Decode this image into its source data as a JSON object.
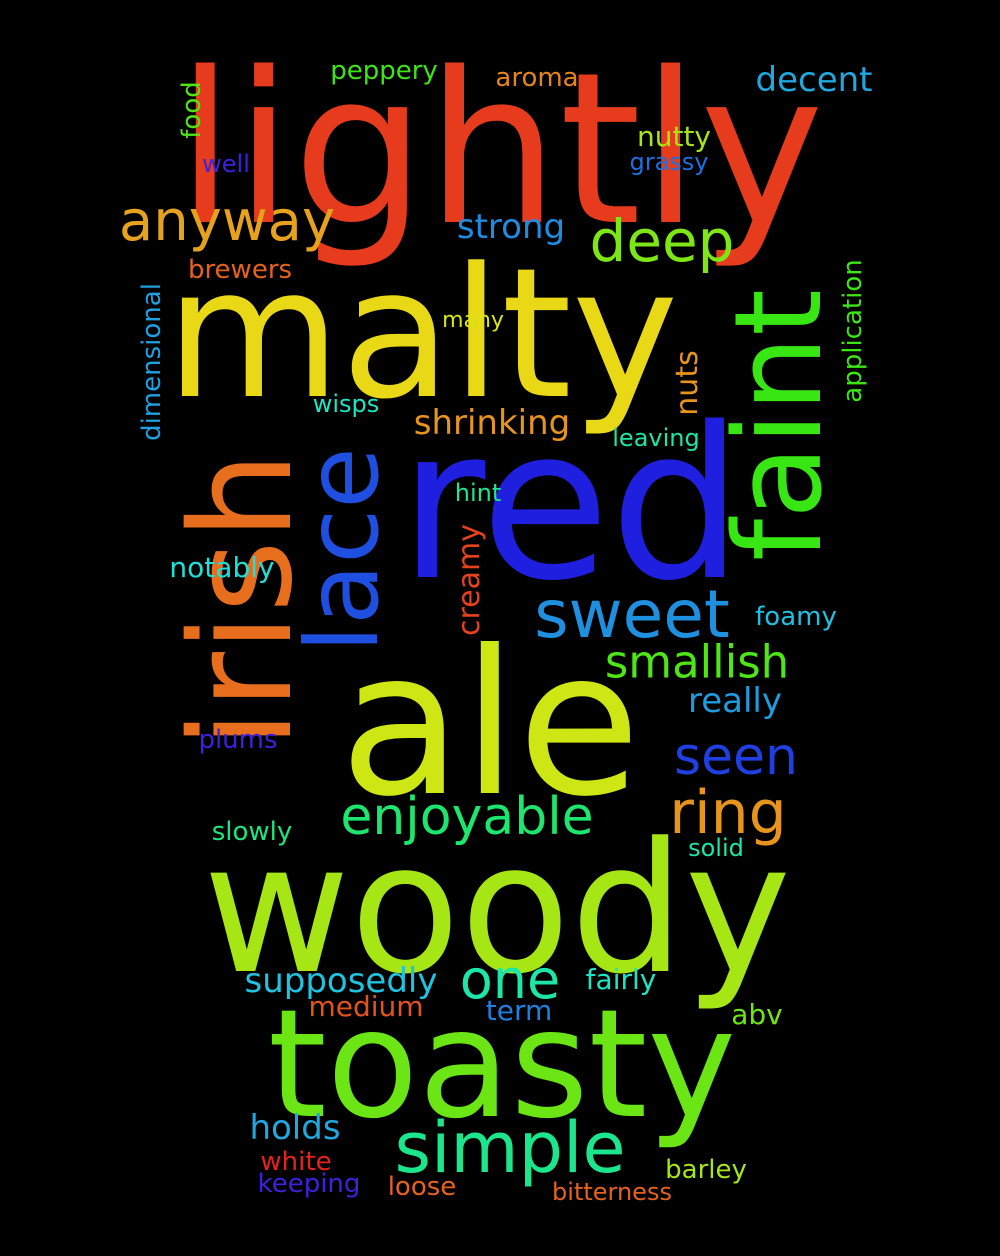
{
  "words": [
    {
      "id": "lightly",
      "text": "lightly",
      "color": "#e63b1c",
      "vertical": false
    },
    {
      "id": "malty",
      "text": "malty",
      "color": "#e8d816",
      "vertical": false
    },
    {
      "id": "red",
      "text": "red",
      "color": "#1f1fe0",
      "vertical": false
    },
    {
      "id": "ale",
      "text": "ale",
      "color": "#cde614",
      "vertical": false
    },
    {
      "id": "woody",
      "text": "woody",
      "color": "#a6e614",
      "vertical": false
    },
    {
      "id": "toasty",
      "text": "toasty",
      "color": "#6be614",
      "vertical": false
    },
    {
      "id": "irish",
      "text": "irish",
      "color": "#e66e1c",
      "vertical": true
    },
    {
      "id": "faint",
      "text": "faint",
      "color": "#38e614",
      "vertical": true
    },
    {
      "id": "lace",
      "text": "lace",
      "color": "#1f4fe0",
      "vertical": true
    },
    {
      "id": "anyway",
      "text": "anyway",
      "color": "#e6a21c",
      "vertical": false
    },
    {
      "id": "deep",
      "text": "deep",
      "color": "#7ee614",
      "vertical": false
    },
    {
      "id": "sweet",
      "text": "sweet",
      "color": "#1f8fe0",
      "vertical": false
    },
    {
      "id": "simple",
      "text": "simple",
      "color": "#1ce68c",
      "vertical": false
    },
    {
      "id": "enjoyable",
      "text": "enjoyable",
      "color": "#1ce66e",
      "vertical": false
    },
    {
      "id": "smallish",
      "text": "smallish",
      "color": "#4ee614",
      "vertical": false
    },
    {
      "id": "seen",
      "text": "seen",
      "color": "#1f3fe0",
      "vertical": false
    },
    {
      "id": "ring",
      "text": "ring",
      "color": "#e6941c",
      "vertical": false
    },
    {
      "id": "one",
      "text": "one",
      "color": "#1ce6a8",
      "vertical": false
    },
    {
      "id": "strong",
      "text": "strong",
      "color": "#1f8ce0",
      "vertical": false
    },
    {
      "id": "shrinking",
      "text": "shrinking",
      "color": "#e6941c",
      "vertical": false
    },
    {
      "id": "supposedly",
      "text": "supposedly",
      "color": "#1fc4e0",
      "vertical": false
    },
    {
      "id": "decent",
      "text": "decent",
      "color": "#1fa8e0",
      "vertical": false
    },
    {
      "id": "nutty",
      "text": "nutty",
      "color": "#a6e614",
      "vertical": false
    },
    {
      "id": "grassy",
      "text": "grassy",
      "color": "#1f6fe0",
      "vertical": false
    },
    {
      "id": "peppery",
      "text": "peppery",
      "color": "#3ce614",
      "vertical": false
    },
    {
      "id": "aroma",
      "text": "aroma",
      "color": "#e6841c",
      "vertical": false
    },
    {
      "id": "food",
      "text": "food",
      "color": "#4ee614",
      "vertical": true
    },
    {
      "id": "well",
      "text": "well",
      "color": "#3f1fe0",
      "vertical": false
    },
    {
      "id": "brewers",
      "text": "brewers",
      "color": "#e6621c",
      "vertical": false
    },
    {
      "id": "many",
      "text": "many",
      "color": "#d8e614",
      "vertical": false
    },
    {
      "id": "dimensional",
      "text": "dimensional",
      "color": "#1fa0e0",
      "vertical": true
    },
    {
      "id": "application",
      "text": "application",
      "color": "#3ce614",
      "vertical": true
    },
    {
      "id": "nuts",
      "text": "nuts",
      "color": "#e6941c",
      "vertical": true
    },
    {
      "id": "wisps",
      "text": "wisps",
      "color": "#1ce6c4",
      "vertical": false
    },
    {
      "id": "leaving",
      "text": "leaving",
      "color": "#1ce6a0",
      "vertical": false
    },
    {
      "id": "hint",
      "text": "hint",
      "color": "#1ce694",
      "vertical": false
    },
    {
      "id": "creamy",
      "text": "creamy",
      "color": "#e6421c",
      "vertical": true
    },
    {
      "id": "notably",
      "text": "notably",
      "color": "#1fe0d8",
      "vertical": false
    },
    {
      "id": "foamy",
      "text": "foamy",
      "color": "#1fc0e0",
      "vertical": false
    },
    {
      "id": "really",
      "text": "really",
      "color": "#1f9ce0",
      "vertical": false
    },
    {
      "id": "plums",
      "text": "plums",
      "color": "#3f1fe0",
      "vertical": false
    },
    {
      "id": "slowly",
      "text": "slowly",
      "color": "#1ce67e",
      "vertical": false
    },
    {
      "id": "solid",
      "text": "solid",
      "color": "#1ce6a8",
      "vertical": false
    },
    {
      "id": "fairly",
      "text": "fairly",
      "color": "#1ce6c4",
      "vertical": false
    },
    {
      "id": "medium",
      "text": "medium",
      "color": "#e6521c",
      "vertical": false
    },
    {
      "id": "term",
      "text": "term",
      "color": "#1f7fe0",
      "vertical": false
    },
    {
      "id": "abv",
      "text": "abv",
      "color": "#6ee614",
      "vertical": false
    },
    {
      "id": "holds",
      "text": "holds",
      "color": "#1fa8e0",
      "vertical": false
    },
    {
      "id": "white",
      "text": "white",
      "color": "#e6221c",
      "vertical": false
    },
    {
      "id": "keeping",
      "text": "keeping",
      "color": "#3f1fe0",
      "vertical": false
    },
    {
      "id": "loose",
      "text": "loose",
      "color": "#e6621c",
      "vertical": false
    },
    {
      "id": "barley",
      "text": "barley",
      "color": "#a6e614",
      "vertical": false
    },
    {
      "id": "bitterness",
      "text": "bitterness",
      "color": "#e6621c",
      "vertical": false
    }
  ]
}
